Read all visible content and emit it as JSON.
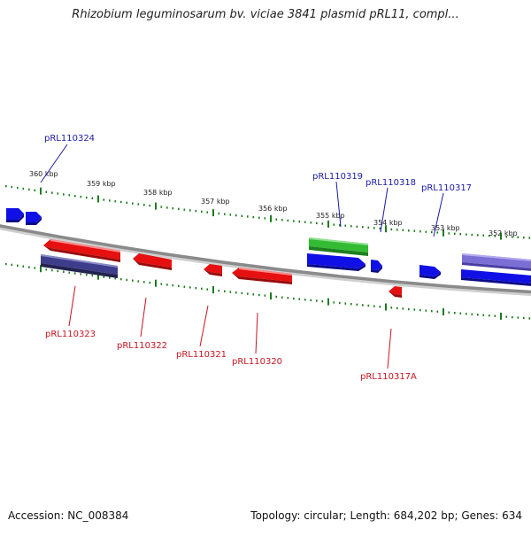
{
  "title": "Rhizobium leguminosarum bv. viciae 3841 plasmid pRL11, compl...",
  "footer": {
    "accession": "Accession: NC_008384",
    "summary": "Topology: circular; Length: 684,202 bp; Genes: 634"
  },
  "colors": {
    "forward_gene": "#1010e6",
    "reverse_gene": "#e61010",
    "highlight_gene": "#33bb33",
    "pseudo_gene": "#3d3d8c",
    "backbone": "#8a8a8a",
    "ticks": "#1d7a1d",
    "forward_label": "#1a1aa6",
    "reverse_label": "#c8141e"
  },
  "axis": {
    "tick_labels": [
      "360 kbp",
      "359 kbp",
      "358 kbp",
      "357 kbp",
      "356 kbp",
      "355 kbp",
      "354 kbp",
      "353 kbp",
      "352 kbp"
    ]
  },
  "genes": {
    "forward_labels": [
      "pRL110324",
      "pRL110319",
      "pRL110318",
      "pRL110317"
    ],
    "reverse_labels": [
      "pRL110323",
      "pRL110322",
      "pRL110321",
      "pRL110320",
      "pRL110317A"
    ]
  }
}
